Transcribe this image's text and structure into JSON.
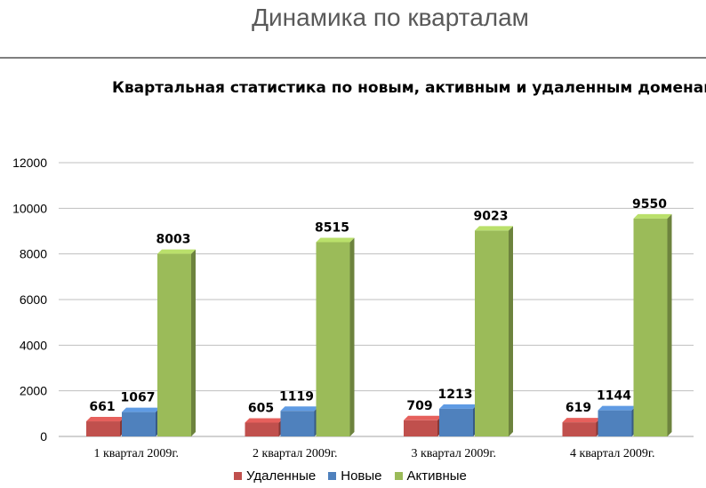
{
  "slide": {
    "title": "Динамика по кварталам"
  },
  "colors": {
    "removed": "#c0504d",
    "new": "#4f81bd",
    "active": "#9bbb59",
    "grid": "#bfbfbf",
    "title_rule": "#7f7f7f"
  },
  "chart_data": {
    "type": "bar",
    "title": "Квартальная статистика по новым, активным и удаленным доменам",
    "xlabel": "",
    "ylabel": "",
    "ylim": [
      0,
      12000
    ],
    "yticks": [
      0,
      2000,
      4000,
      6000,
      8000,
      10000,
      12000
    ],
    "grid": true,
    "legend_position": "bottom",
    "categories": [
      "1 квартал 2009г.",
      "2 квартал 2009г.",
      "3 квартал 2009г.",
      "4 квартал 2009г."
    ],
    "series": [
      {
        "name": "Удаленные",
        "color": "#c0504d",
        "values": [
          661,
          605,
          709,
          619
        ]
      },
      {
        "name": "Новые",
        "color": "#4f81bd",
        "values": [
          1067,
          1119,
          1213,
          1144
        ]
      },
      {
        "name": "Активные",
        "color": "#9bbb59",
        "values": [
          8003,
          8515,
          9023,
          9550
        ]
      }
    ]
  }
}
